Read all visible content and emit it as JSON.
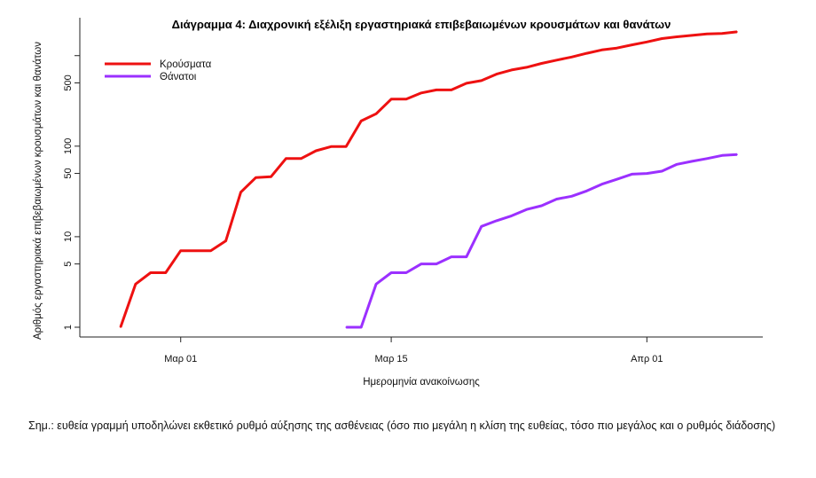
{
  "chart_data": {
    "type": "line",
    "title": "Διάγραμμα 4: Διαχρονική εξέλιξη εργαστηριακά επιβεβαιωμένων κρουσμάτων και θανάτων",
    "xlabel": "Ημερομηνία ανακοίνωσης",
    "ylabel": "Αριθμός εργαστηριακά επιβεβαιωμένων κρουσμάτων και θανάτων",
    "y_scale": "log",
    "ylim": [
      1,
      2000
    ],
    "xlim": [
      "2020-02-24",
      "2020-04-08"
    ],
    "x_ticks": [
      {
        "date": "2020-03-01",
        "label": "Μαρ 01"
      },
      {
        "date": "2020-03-15",
        "label": "Μαρ 15"
      },
      {
        "date": "2020-04-01",
        "label": "Απρ 01"
      }
    ],
    "y_ticks": [
      {
        "value": 1,
        "label": "1"
      },
      {
        "value": 5,
        "label": "5"
      },
      {
        "value": 10,
        "label": "10"
      },
      {
        "value": 50,
        "label": "50"
      },
      {
        "value": 100,
        "label": "100"
      },
      {
        "value": 500,
        "label": "500"
      },
      {
        "value": 1000,
        "label": ""
      }
    ],
    "grid": false,
    "legend_position": "top-left",
    "series": [
      {
        "name": "Κρούσματα",
        "color": "#ee1111",
        "points": [
          [
            "2020-02-26",
            1
          ],
          [
            "2020-02-27",
            3
          ],
          [
            "2020-02-28",
            4
          ],
          [
            "2020-02-29",
            4
          ],
          [
            "2020-03-01",
            7
          ],
          [
            "2020-03-02",
            7
          ],
          [
            "2020-03-03",
            7
          ],
          [
            "2020-03-04",
            9
          ],
          [
            "2020-03-05",
            31
          ],
          [
            "2020-03-06",
            45
          ],
          [
            "2020-03-07",
            46
          ],
          [
            "2020-03-08",
            73
          ],
          [
            "2020-03-09",
            73
          ],
          [
            "2020-03-10",
            89
          ],
          [
            "2020-03-11",
            99
          ],
          [
            "2020-03-12",
            99
          ],
          [
            "2020-03-13",
            190
          ],
          [
            "2020-03-14",
            228
          ],
          [
            "2020-03-15",
            331
          ],
          [
            "2020-03-16",
            331
          ],
          [
            "2020-03-17",
            387
          ],
          [
            "2020-03-18",
            418
          ],
          [
            "2020-03-19",
            418
          ],
          [
            "2020-03-20",
            495
          ],
          [
            "2020-03-21",
            530
          ],
          [
            "2020-03-22",
            624
          ],
          [
            "2020-03-23",
            695
          ],
          [
            "2020-03-24",
            743
          ],
          [
            "2020-03-25",
            821
          ],
          [
            "2020-03-26",
            892
          ],
          [
            "2020-03-27",
            966
          ],
          [
            "2020-03-28",
            1061
          ],
          [
            "2020-03-29",
            1156
          ],
          [
            "2020-03-30",
            1212
          ],
          [
            "2020-03-31",
            1314
          ],
          [
            "2020-04-01",
            1415
          ],
          [
            "2020-04-02",
            1544
          ],
          [
            "2020-04-03",
            1613
          ],
          [
            "2020-04-04",
            1673
          ],
          [
            "2020-04-05",
            1735
          ],
          [
            "2020-04-06",
            1755
          ],
          [
            "2020-04-07",
            1832
          ]
        ]
      },
      {
        "name": "Θάνατοι",
        "color": "#9b30ff",
        "points": [
          [
            "2020-03-12",
            1
          ],
          [
            "2020-03-13",
            1
          ],
          [
            "2020-03-14",
            3
          ],
          [
            "2020-03-15",
            4
          ],
          [
            "2020-03-16",
            4
          ],
          [
            "2020-03-17",
            5
          ],
          [
            "2020-03-18",
            5
          ],
          [
            "2020-03-19",
            6
          ],
          [
            "2020-03-20",
            6
          ],
          [
            "2020-03-21",
            13
          ],
          [
            "2020-03-22",
            15
          ],
          [
            "2020-03-23",
            17
          ],
          [
            "2020-03-24",
            20
          ],
          [
            "2020-03-25",
            22
          ],
          [
            "2020-03-26",
            26
          ],
          [
            "2020-03-27",
            28
          ],
          [
            "2020-03-28",
            32
          ],
          [
            "2020-03-29",
            38
          ],
          [
            "2020-03-30",
            43
          ],
          [
            "2020-03-31",
            49
          ],
          [
            "2020-04-01",
            50
          ],
          [
            "2020-04-02",
            53
          ],
          [
            "2020-04-03",
            63
          ],
          [
            "2020-04-04",
            68
          ],
          [
            "2020-04-05",
            73
          ],
          [
            "2020-04-06",
            79
          ],
          [
            "2020-04-07",
            81
          ]
        ]
      }
    ]
  },
  "note": "Σημ.: ευθεία γραμμή υποδηλώνει εκθετικό ρυθμό αύξησης της ασθένειας (όσο πιο μεγάλη η κλίση της ευθείας, τόσο πιο μεγάλος και ο ρυθμός διάδοσης)"
}
